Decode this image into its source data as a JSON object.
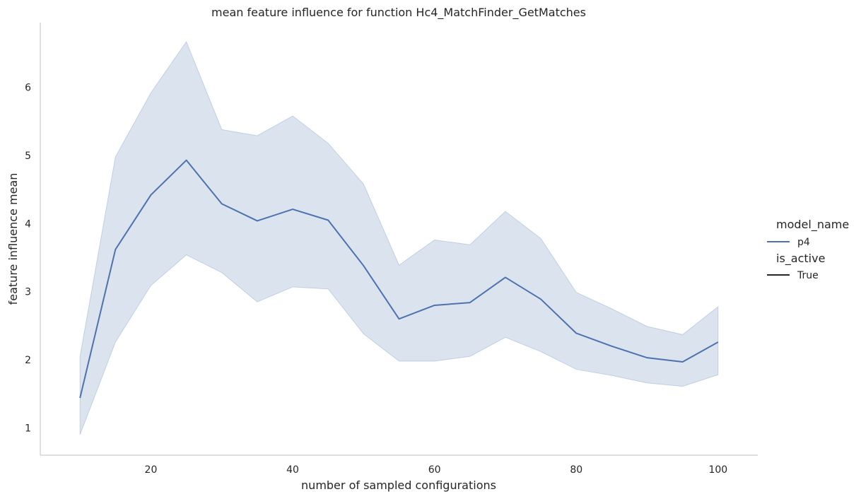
{
  "chart_data": {
    "type": "line",
    "title": "mean feature influence for function Hc4_MatchFinder_GetMatches",
    "xlabel": "number of sampled configurations",
    "ylabel": "feature influence mean",
    "xlim": [
      4.4,
      105.6
    ],
    "ylim": [
      0.6,
      6.95
    ],
    "xticks": [
      20,
      40,
      60,
      80,
      100
    ],
    "yticks": [
      1,
      2,
      3,
      4,
      5,
      6
    ],
    "grid": false,
    "legend_position": "right",
    "legend": {
      "hue_title": "model_name",
      "hue_entries": [
        {
          "label": "p4",
          "color": "#4c72b0"
        }
      ],
      "style_title": "is_active",
      "style_entries": [
        {
          "label": "True",
          "color": "#262626"
        }
      ]
    },
    "series": [
      {
        "name": "p4",
        "color": "#4c72b0",
        "x": [
          10,
          15,
          20,
          25,
          30,
          35,
          40,
          45,
          50,
          55,
          60,
          65,
          70,
          75,
          80,
          85,
          90,
          95,
          100
        ],
        "values": [
          1.44,
          3.62,
          4.42,
          4.93,
          4.29,
          4.04,
          4.21,
          4.05,
          3.38,
          2.6,
          2.8,
          2.84,
          3.21,
          2.89,
          2.39,
          2.2,
          2.03,
          1.97,
          2.26
        ],
        "ci_lower": [
          0.9,
          2.26,
          3.09,
          3.54,
          3.28,
          2.85,
          3.07,
          3.04,
          2.38,
          1.98,
          1.98,
          2.05,
          2.33,
          2.12,
          1.86,
          1.77,
          1.66,
          1.61,
          1.78
        ],
        "ci_upper": [
          2.05,
          4.98,
          5.92,
          6.67,
          5.38,
          5.29,
          5.58,
          5.18,
          4.58,
          3.39,
          3.76,
          3.69,
          4.18,
          3.78,
          2.99,
          2.75,
          2.49,
          2.37,
          2.78
        ]
      }
    ]
  }
}
